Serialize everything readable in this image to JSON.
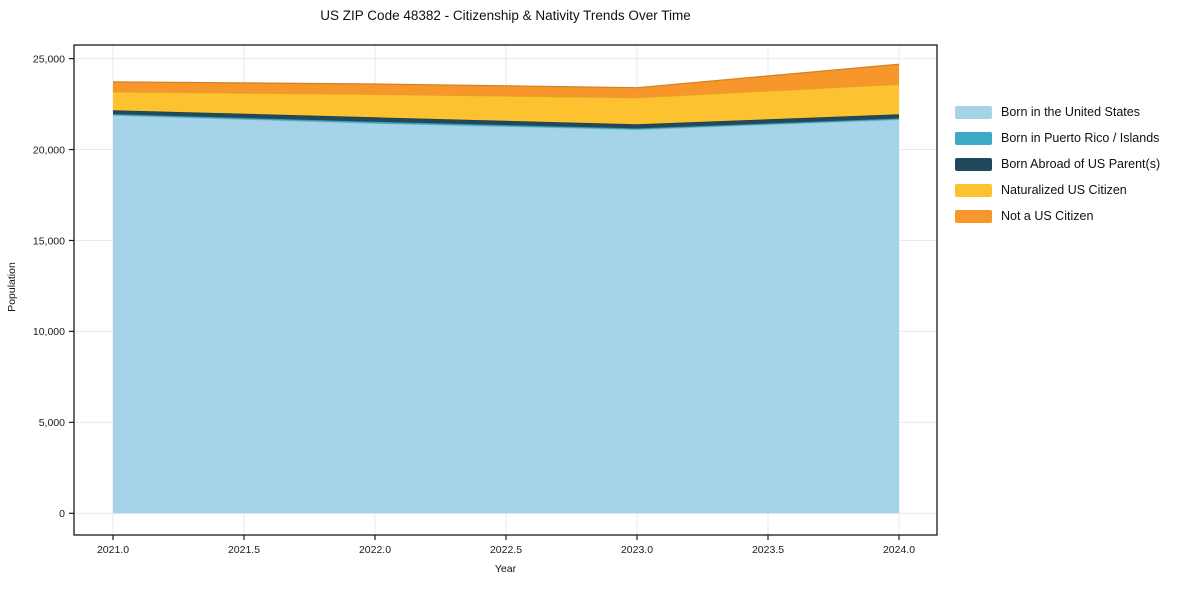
{
  "chart_data": {
    "type": "area",
    "stacked": true,
    "title": "US ZIP Code 48382 - Citizenship & Nativity Trends Over Time",
    "xlabel": "Year",
    "ylabel": "Population",
    "x": [
      2021,
      2022,
      2023,
      2024
    ],
    "x_tick_values": [
      2021.0,
      2021.5,
      2022.0,
      2022.5,
      2023.0,
      2023.5,
      2024.0
    ],
    "x_tick_labels": [
      "2021.0",
      "2021.5",
      "2022.0",
      "2022.5",
      "2023.0",
      "2023.5",
      "2024.0"
    ],
    "y_tick_values": [
      0,
      5000,
      10000,
      15000,
      20000,
      25000
    ],
    "y_tick_labels": [
      "0",
      "5,000",
      "10,000",
      "15,000",
      "20,000",
      "25,000"
    ],
    "ylim": [
      0,
      25000
    ],
    "grid": true,
    "legend_position": "right-outside",
    "series": [
      {
        "name": "Born in the United States",
        "color": "#a5d3e8",
        "values": [
          21890,
          21440,
          21100,
          21650
        ]
      },
      {
        "name": "Born in Puerto Rico / Islands",
        "color": "#3ea9c4",
        "values": [
          60,
          90,
          60,
          60
        ]
      },
      {
        "name": "Born Abroad of US Parent(s)",
        "color": "#20495c",
        "values": [
          215,
          240,
          230,
          230
        ]
      },
      {
        "name": "Naturalized US Citizen",
        "color": "#fdc22f",
        "values": [
          1010,
          1265,
          1460,
          1650
        ]
      },
      {
        "name": "Not a US Citizen",
        "color": "#f7962a",
        "values": [
          550,
          570,
          550,
          1100
        ]
      }
    ],
    "totals": [
      23725,
      23605,
      23400,
      24690
    ]
  },
  "colors": {
    "frame": "#1a1a1a",
    "grid": "#e9e9e9",
    "background": "#ffffff"
  }
}
